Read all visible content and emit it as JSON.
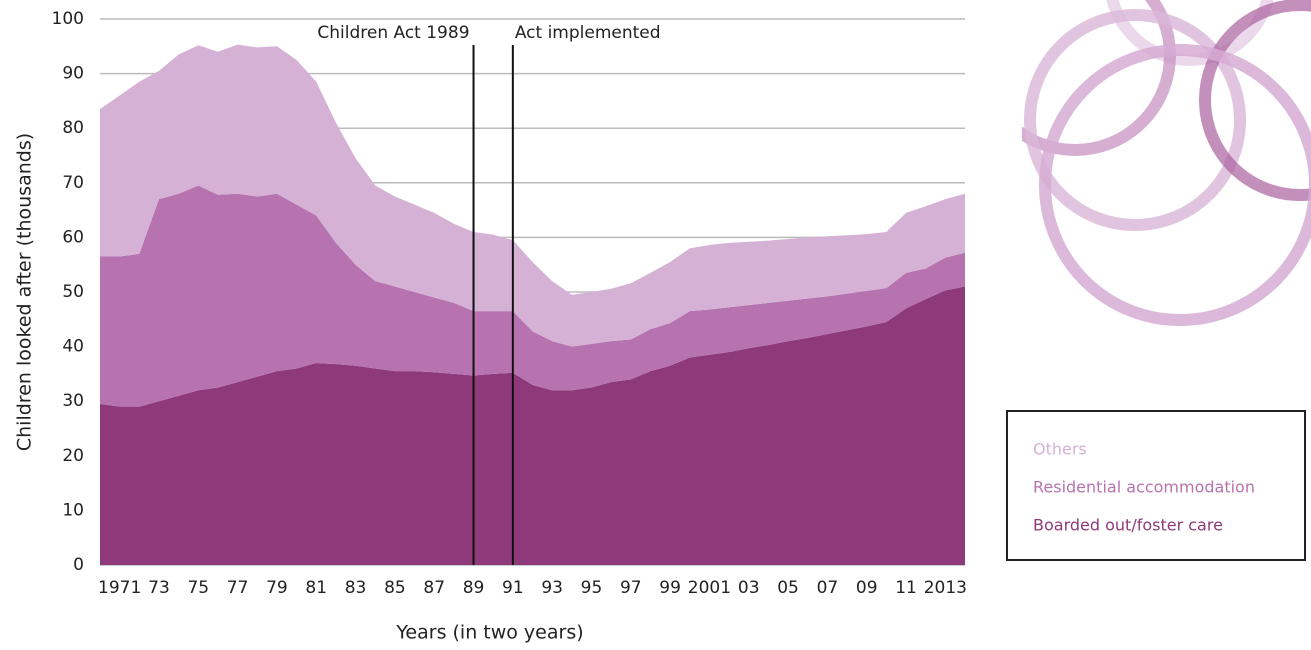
{
  "chart_data": {
    "type": "stacked_area",
    "x_label": "Years (in two years)",
    "y_label": "Children looked after (thousands)",
    "categories": [
      null,
      "1971",
      null,
      "73",
      null,
      "75",
      null,
      "77",
      null,
      "79",
      null,
      "81",
      null,
      "83",
      null,
      "85",
      null,
      "87",
      null,
      "89",
      null,
      "91",
      null,
      "93",
      null,
      "95",
      null,
      "97",
      null,
      "99",
      null,
      "2001",
      null,
      "03",
      null,
      "05",
      null,
      "07",
      null,
      "09",
      null,
      "11",
      null,
      "2013",
      null
    ],
    "series": [
      {
        "name": "Boarded out/foster care",
        "color": "#8e3a7a",
        "values": [
          29.5,
          29,
          29,
          30,
          31,
          32,
          32.5,
          33.5,
          34.5,
          35.5,
          36,
          37,
          36.8,
          36.5,
          36,
          35.5,
          35.5,
          35.3,
          35,
          34.7,
          35,
          35.2,
          33,
          32,
          32,
          32.5,
          33.5,
          34,
          35.5,
          36.5,
          38,
          38.5,
          39,
          39.7,
          40.3,
          41,
          41.6,
          42.3,
          43,
          43.7,
          44.5,
          47,
          48.7,
          50.3,
          51
        ]
      },
      {
        "name": "Residential accommodation",
        "color": "#b773b0",
        "values": [
          27,
          27.5,
          28,
          37,
          37,
          37.5,
          35.3,
          34.5,
          33,
          32.5,
          30,
          27,
          22.2,
          18.5,
          16,
          15.5,
          14.5,
          13.7,
          13,
          11.8,
          11.5,
          11.3,
          9.8,
          9,
          8,
          8,
          7.5,
          7.3,
          7.7,
          7.8,
          8.5,
          8.3,
          8.2,
          7.9,
          7.7,
          7.4,
          7.2,
          6.9,
          6.7,
          6.5,
          6.2,
          6.5,
          5.6,
          6,
          6.2
        ]
      },
      {
        "name": "Others",
        "color": "#d5b2d5",
        "values": [
          27,
          29.5,
          31.5,
          23.5,
          25.5,
          25.7,
          26.2,
          27.3,
          27.3,
          27,
          26.5,
          24.5,
          22,
          19.5,
          17.5,
          16.5,
          16,
          15.5,
          14.5,
          14.5,
          14,
          13,
          12.7,
          11,
          9.5,
          9.5,
          9.6,
          10.3,
          10.3,
          11.2,
          11.5,
          11.8,
          11.8,
          11.6,
          11.4,
          11.3,
          11.2,
          11,
          10.7,
          10.4,
          10.3,
          11,
          11.4,
          10.7,
          10.8
        ]
      }
    ],
    "annotations": [
      {
        "label": "Children Act 1989",
        "at": "89"
      },
      {
        "label": "Act implemented",
        "at": "91"
      }
    ],
    "ylim": [
      0,
      100
    ],
    "yticks": [
      0,
      10,
      20,
      30,
      40,
      50,
      60,
      70,
      80,
      90,
      100
    ],
    "grid": true
  }
}
